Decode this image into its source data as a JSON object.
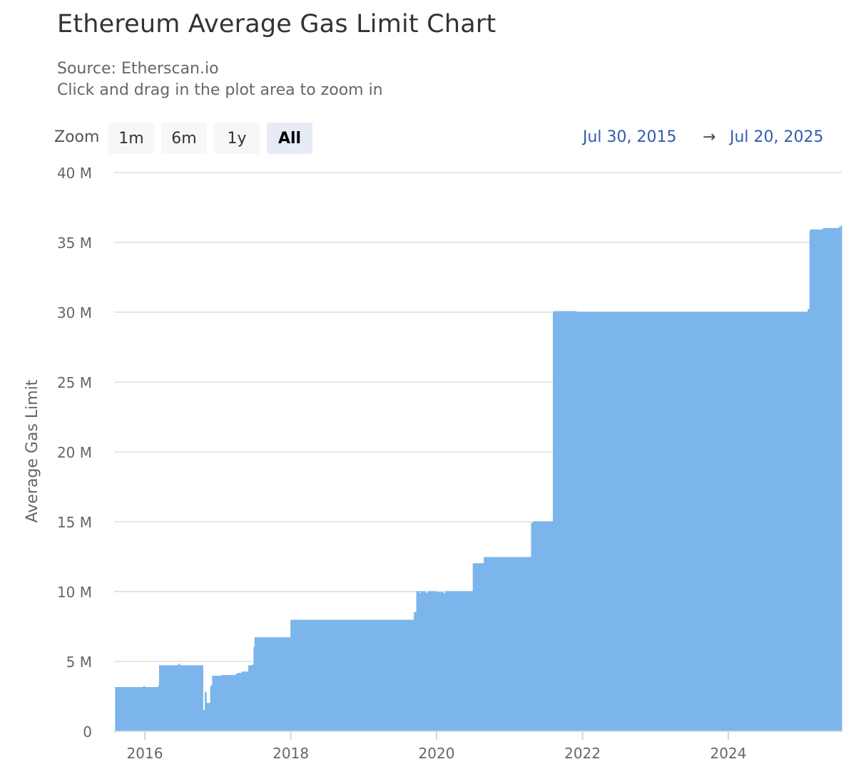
{
  "chart_data": {
    "type": "area",
    "title": "Ethereum Average Gas Limit Chart",
    "subtitle": [
      "Source: Etherscan.io",
      "Click and drag in the plot area to zoom in"
    ],
    "ylabel": "Average Gas Limit",
    "xlabel": "",
    "ylim": [
      0,
      40000000
    ],
    "y_ticks": [
      {
        "value": 0,
        "label": "0"
      },
      {
        "value": 5000000,
        "label": "5 M"
      },
      {
        "value": 10000000,
        "label": "10 M"
      },
      {
        "value": 15000000,
        "label": "15 M"
      },
      {
        "value": 20000000,
        "label": "20 M"
      },
      {
        "value": 25000000,
        "label": "25 M"
      },
      {
        "value": 30000000,
        "label": "30 M"
      },
      {
        "value": 35000000,
        "label": "35 M"
      },
      {
        "value": 40000000,
        "label": "40 M"
      }
    ],
    "x_ticks": [
      {
        "value": "2016-01-01",
        "label": "2016"
      },
      {
        "value": "2018-01-01",
        "label": "2018"
      },
      {
        "value": "2020-01-01",
        "label": "2020"
      },
      {
        "value": "2022-01-01",
        "label": "2022"
      },
      {
        "value": "2024-01-01",
        "label": "2024"
      }
    ],
    "xlim": [
      "2015-08-07",
      "2025-07-20"
    ],
    "grid": true,
    "color": "#7cb5ec",
    "series": [
      {
        "x": [
          "2015-08-07",
          "2015-12-25",
          "2016-01-01",
          "2016-03-10",
          "2016-03-14",
          "2016-06-18",
          "2016-06-24",
          "2016-10-18",
          "2016-10-29",
          "2016-11-04",
          "2016-11-25",
          "2016-12-01",
          "2016-12-05",
          "2017-01-20",
          "2017-04-02",
          "2017-04-13",
          "2017-05-01",
          "2017-06-04",
          "2017-06-24",
          "2017-06-30",
          "2017-07-05",
          "2017-12-12",
          "2018-01-01",
          "2019-09-11",
          "2019-09-23",
          "2019-10-08",
          "2019-10-16",
          "2019-11-05",
          "2019-11-20",
          "2020-01-01",
          "2020-02-05",
          "2020-02-15",
          "2020-07-02",
          "2020-08-26",
          "2021-04-20",
          "2021-04-30",
          "2021-08-07",
          "2021-08-10",
          "2021-12-01",
          "2025-02-03",
          "2025-02-12",
          "2025-02-16",
          "2025-04-20",
          "2025-07-10",
          "2025-07-20"
        ],
        "y": [
          3140000,
          3200000,
          3140000,
          3250000,
          4700000,
          4800000,
          4700000,
          1500000,
          2800000,
          2000000,
          3200000,
          3300000,
          3950000,
          4000000,
          4100000,
          4150000,
          4250000,
          4700000,
          4750000,
          6000000,
          6700000,
          6700000,
          7950000,
          8500000,
          10000000,
          9850000,
          10000000,
          9900000,
          10000000,
          9950000,
          9850000,
          10000000,
          12000000,
          12450000,
          14900000,
          15000000,
          30000000,
          30050000,
          30000000,
          30200000,
          35800000,
          35900000,
          36000000,
          36100000,
          36200000
        ]
      }
    ]
  },
  "toolbar": {
    "zoom_label": "Zoom",
    "buttons": [
      "1m",
      "6m",
      "1y",
      "All"
    ],
    "active": "All",
    "range_from": "Jul 30, 2015",
    "range_arrow": "→",
    "range_to": "Jul 20, 2025"
  }
}
